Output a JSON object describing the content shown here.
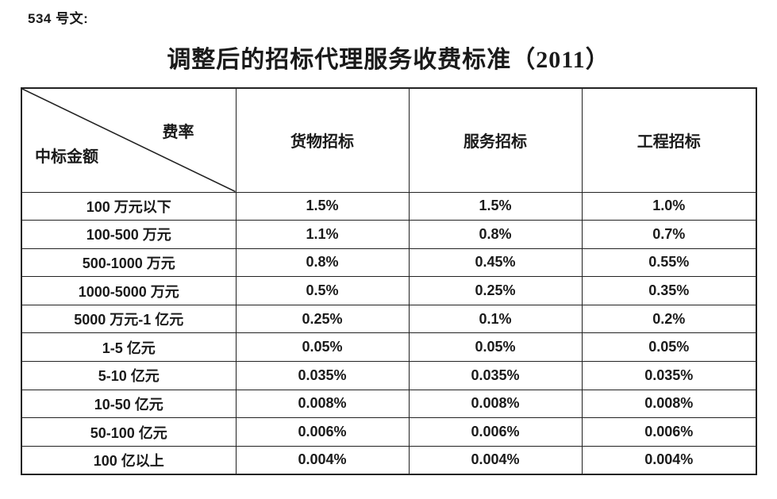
{
  "page": {
    "doc_label": "534 号文:",
    "title": "调整后的招标代理服务收费标准（2011）"
  },
  "table": {
    "corner": {
      "top_right": "费率",
      "bottom_left": "中标金额"
    },
    "columns": [
      "货物招标",
      "服务招标",
      "工程招标"
    ],
    "rows": [
      {
        "amount": "100 万元以下",
        "values": [
          "1.5%",
          "1.5%",
          "1.0%"
        ]
      },
      {
        "amount": "100-500 万元",
        "values": [
          "1.1%",
          "0.8%",
          "0.7%"
        ]
      },
      {
        "amount": "500-1000 万元",
        "values": [
          "0.8%",
          "0.45%",
          "0.55%"
        ]
      },
      {
        "amount": "1000-5000 万元",
        "values": [
          "0.5%",
          "0.25%",
          "0.35%"
        ]
      },
      {
        "amount": "5000 万元-1 亿元",
        "values": [
          "0.25%",
          "0.1%",
          "0.2%"
        ]
      },
      {
        "amount": "1-5 亿元",
        "values": [
          "0.05%",
          "0.05%",
          "0.05%"
        ]
      },
      {
        "amount": "5-10 亿元",
        "values": [
          "0.035%",
          "0.035%",
          "0.035%"
        ]
      },
      {
        "amount": "10-50 亿元",
        "values": [
          "0.008%",
          "0.008%",
          "0.008%"
        ]
      },
      {
        "amount": "50-100 亿元",
        "values": [
          "0.006%",
          "0.006%",
          "0.006%"
        ]
      },
      {
        "amount": "100 亿以上",
        "values": [
          "0.004%",
          "0.004%",
          "0.004%"
        ]
      }
    ]
  },
  "colors": {
    "text": "#1a1a1a",
    "border": "#222222",
    "background": "#ffffff"
  }
}
